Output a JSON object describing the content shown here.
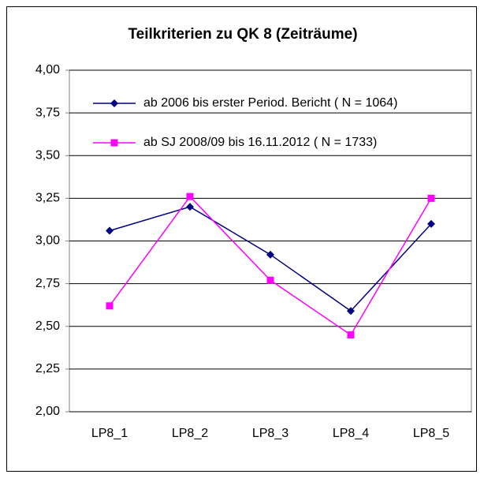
{
  "chart_data": {
    "type": "line",
    "title": "Teilkriterien zu QK 8 (Zeiträume)",
    "categories": [
      "LP8_1",
      "LP8_2",
      "LP8_3",
      "LP8_4",
      "LP8_5"
    ],
    "series": [
      {
        "name": "ab 2006 bis erster Period. Bericht ( N = 1064)",
        "color": "#000080",
        "marker": "diamond",
        "values": [
          3.06,
          3.2,
          2.92,
          2.59,
          3.1
        ]
      },
      {
        "name": "ab SJ 2008/09 bis 16.11.2012 ( N = 1733)",
        "color": "#ff00ff",
        "marker": "square",
        "values": [
          2.62,
          3.26,
          2.77,
          2.45,
          3.25
        ]
      }
    ],
    "ylim": [
      2,
      4
    ],
    "yticks": [
      {
        "value": 2,
        "label": "2,00"
      },
      {
        "value": 2.25,
        "label": "2,25"
      },
      {
        "value": 2.5,
        "label": "2,50"
      },
      {
        "value": 2.75,
        "label": "2,75"
      },
      {
        "value": 3,
        "label": "3,00"
      },
      {
        "value": 3.25,
        "label": "3,25"
      },
      {
        "value": 3.5,
        "label": "3,50"
      },
      {
        "value": 3.75,
        "label": "3,75"
      },
      {
        "value": 4,
        "label": "4,00"
      }
    ],
    "grid": true,
    "legend": "upper left"
  }
}
